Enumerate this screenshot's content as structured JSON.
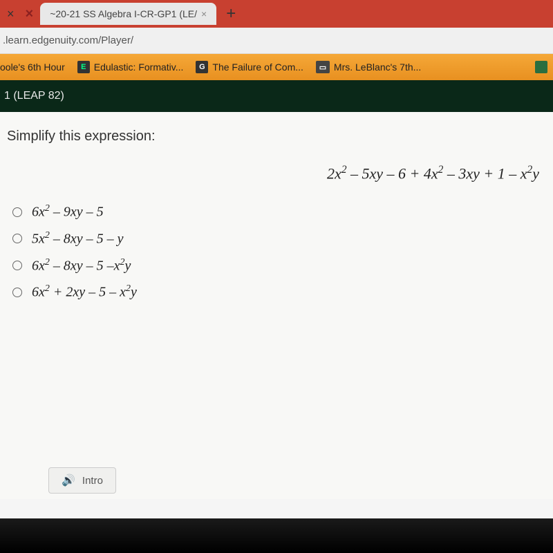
{
  "browser": {
    "tab_title": "~20-21 SS Algebra I-CR-GP1 (LE/",
    "tab_close_x": "×",
    "url": ".learn.edgenuity.com/Player/",
    "add_tab": "+"
  },
  "bookmarks": {
    "items": [
      {
        "label": "oole's 6th Hour",
        "icon": ""
      },
      {
        "label": "Edulastic: Formativ...",
        "icon": "E"
      },
      {
        "label": "The Failure of Com...",
        "icon": "G"
      },
      {
        "label": "Mrs. LeBlanc's 7th...",
        "icon": "▭"
      }
    ]
  },
  "header": {
    "text": "1 (LEAP 82)"
  },
  "question": {
    "prompt": "Simplify this expression:",
    "expression_html": "2<i>x</i><sup>2</sup> – 5<i>xy</i> – 6 + 4<i>x</i><sup>2</sup> – 3<i>xy</i> + 1 – <i>x</i><sup>2</sup><i>y</i>",
    "options": [
      "6<i>x</i><sup>2</sup> – 9<i>xy</i> – 5",
      "5<i>x</i><sup>2</sup> – 8<i>xy</i> – 5 – <i>y</i>",
      "6<i>x</i><sup>2</sup> – 8<i>xy</i> – 5 –<i>x</i><sup>2</sup><i>y</i>",
      "6<i>x</i><sup>2</sup> + 2<i>xy</i> – 5 – <i>x</i><sup>2</sup><i>y</i>"
    ]
  },
  "footer": {
    "intro_label": "Intro"
  },
  "colors": {
    "tab_strip": "#c84030",
    "bookmarks_bg": "#f5a838",
    "header_bg": "#0a2818",
    "content_bg": "#f8f8f6"
  }
}
